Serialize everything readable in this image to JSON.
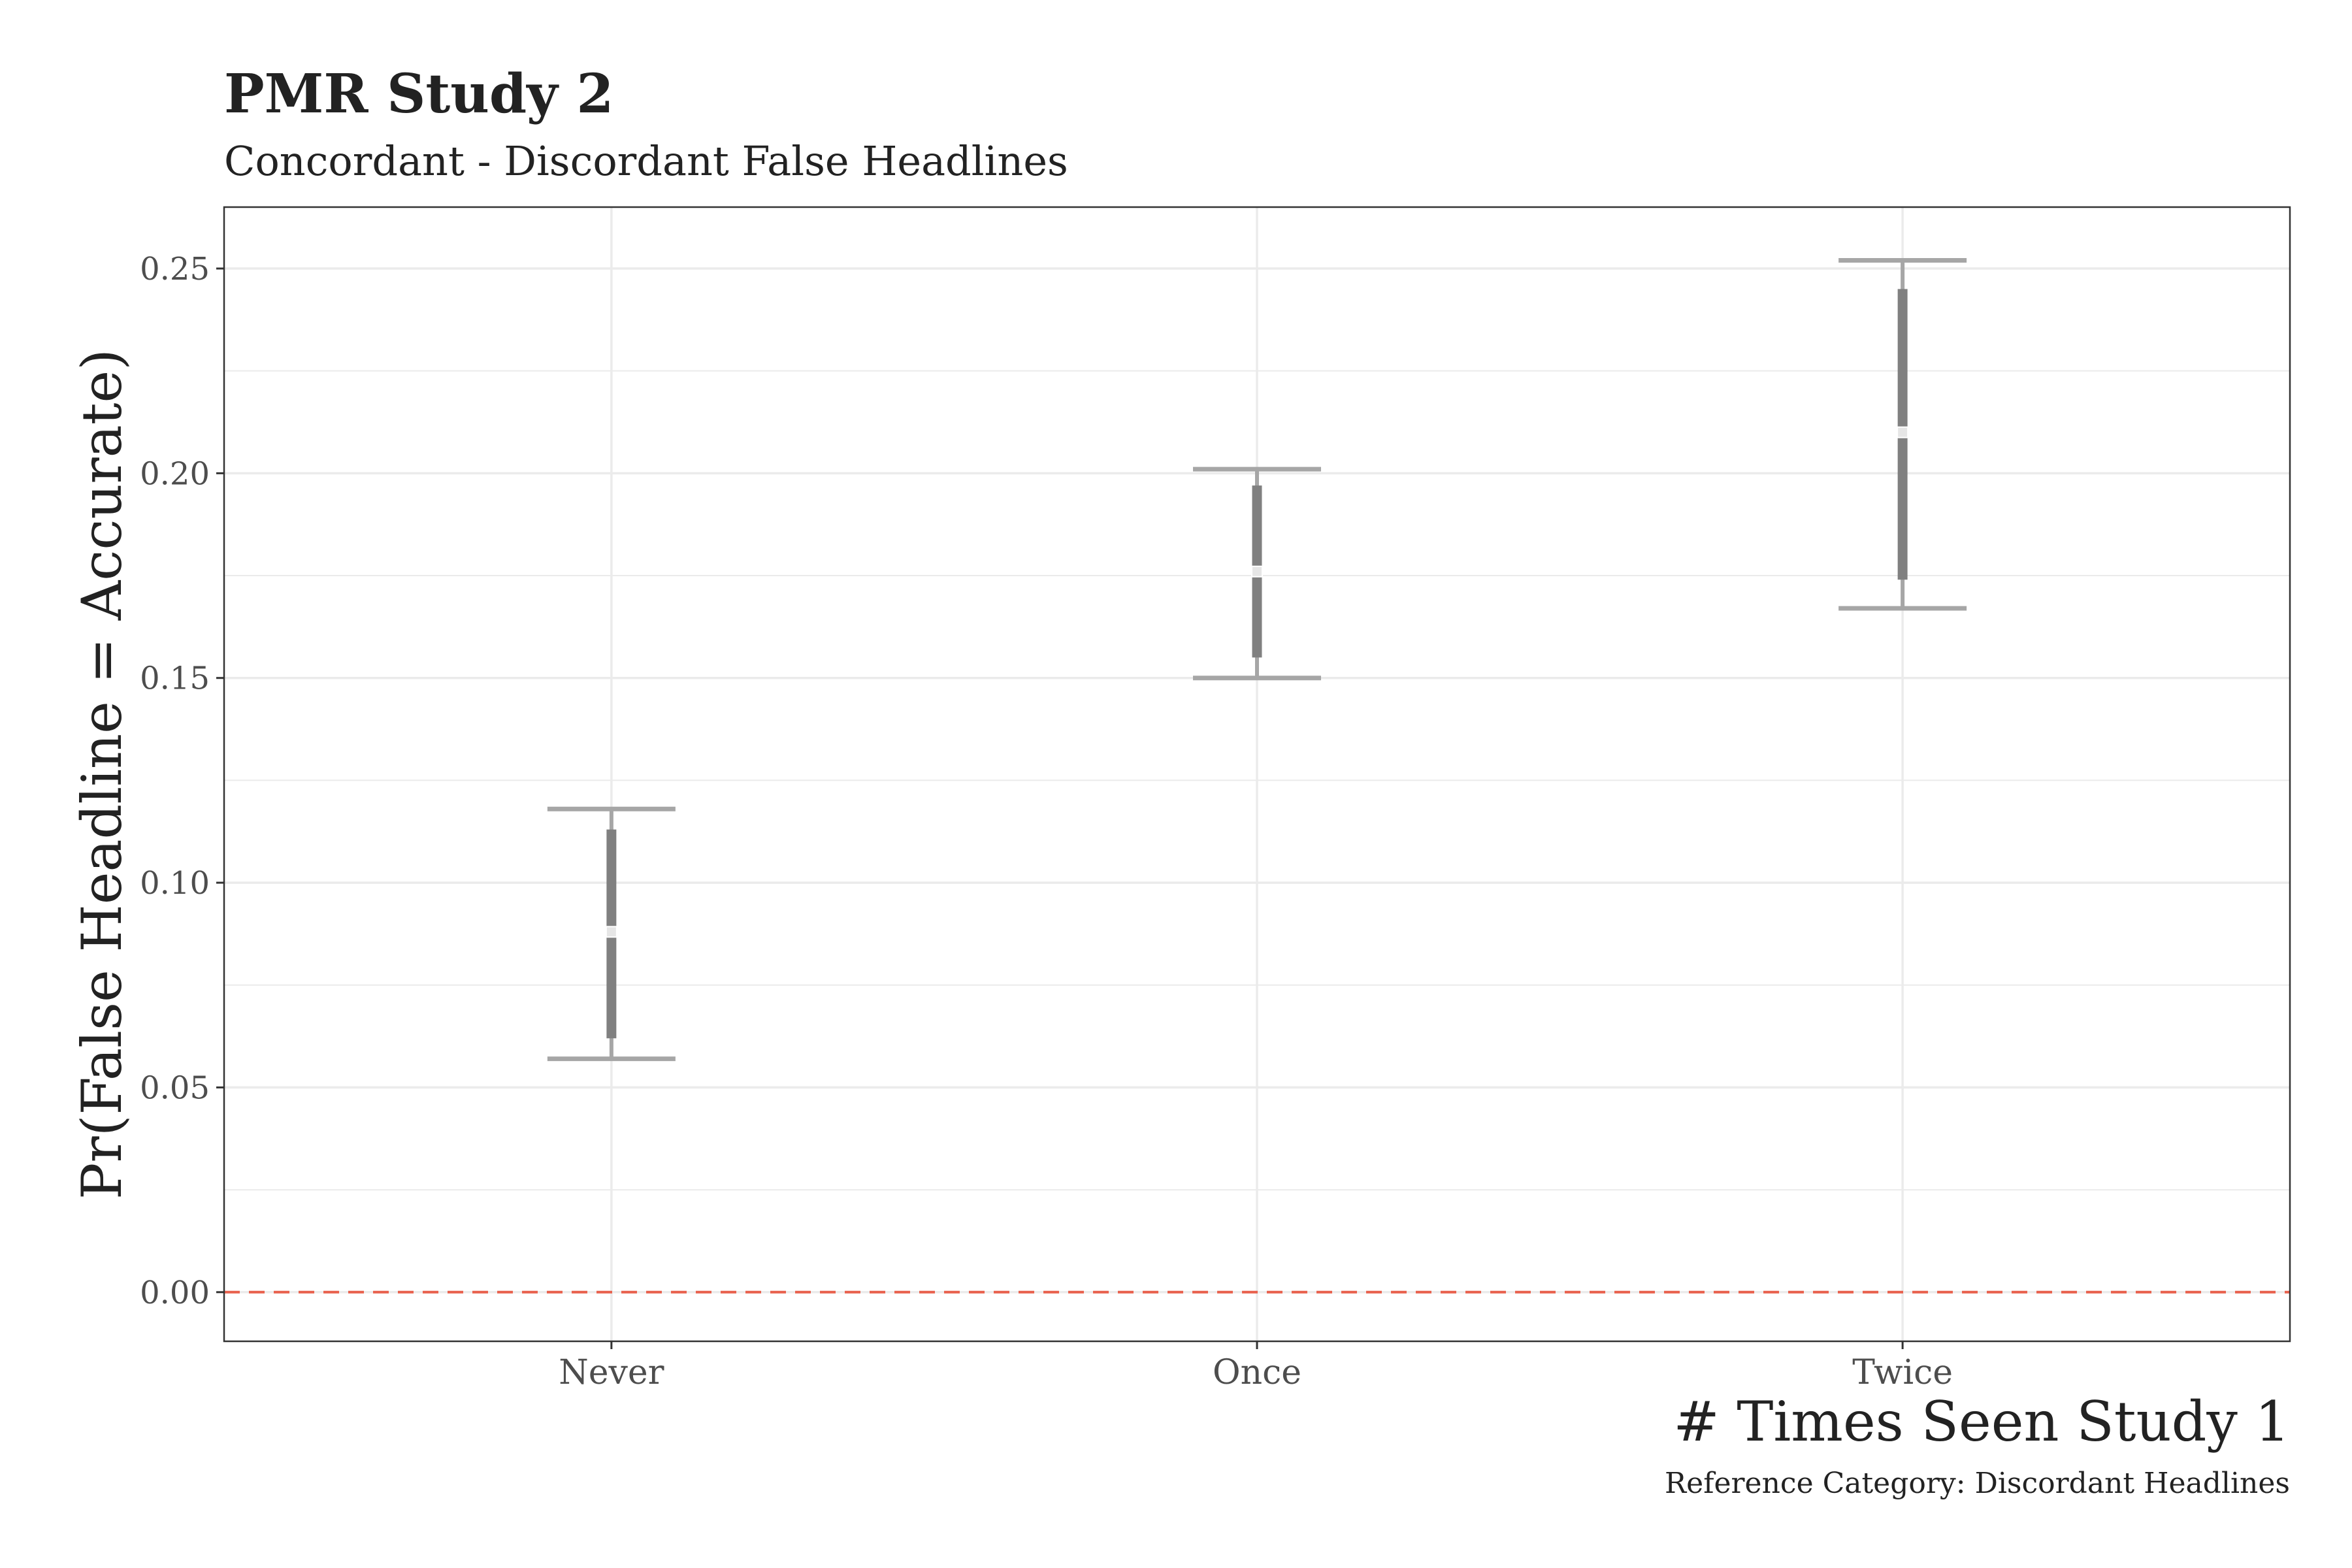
{
  "chart_data": {
    "type": "errorbar",
    "title": "PMR Study 2",
    "subtitle": "Concordant - Discordant False Headlines",
    "xlabel": "# Times Seen Study 1",
    "ylabel": "Pr(False Headline = Accurate)",
    "caption": "Reference Category: Discordant Headlines",
    "categories": [
      "Never",
      "Once",
      "Twice"
    ],
    "ylim": [
      -0.012,
      0.265
    ],
    "yticks": [
      0.0,
      0.05,
      0.1,
      0.15,
      0.2,
      0.25
    ],
    "ytick_labels": [
      "0.00",
      "0.05",
      "0.10",
      "0.15",
      "0.20",
      "0.25"
    ],
    "grid": true,
    "reference_line": {
      "y": 0.0,
      "style": "dashed",
      "color": "#e8604c"
    },
    "points": [
      {
        "category": "Never",
        "estimate": 0.088,
        "ci_inner": [
          0.062,
          0.113
        ],
        "ci_outer": [
          0.057,
          0.118
        ]
      },
      {
        "category": "Once",
        "estimate": 0.176,
        "ci_inner": [
          0.155,
          0.197
        ],
        "ci_outer": [
          0.15,
          0.201
        ]
      },
      {
        "category": "Twice",
        "estimate": 0.21,
        "ci_inner": [
          0.174,
          0.245
        ],
        "ci_outer": [
          0.167,
          0.252
        ]
      }
    ],
    "colors": {
      "inner_bar": "#808080",
      "outer_bar": "#a6a6a6",
      "point_fill": "#e6e6e6",
      "grid": "#ebebeb",
      "panel_border": "#333333",
      "text_dark": "#222222",
      "tick_text": "#4d4d4d"
    }
  }
}
